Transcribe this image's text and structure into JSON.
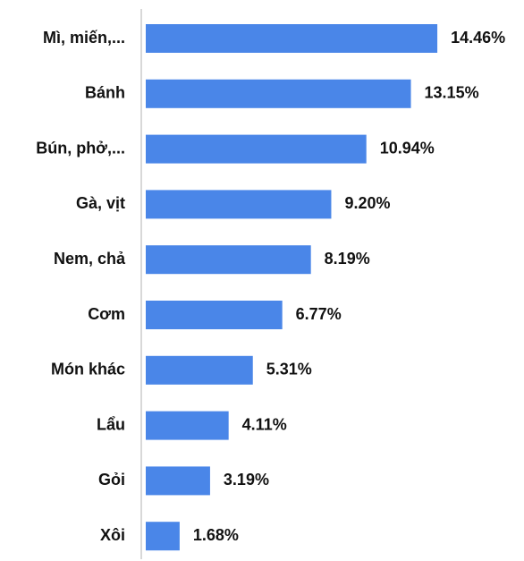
{
  "chart_data": {
    "type": "barh",
    "categories": [
      "Mì, miến,...",
      "Bánh",
      "Bún, phở,...",
      "Gà, vịt",
      "Nem, chả",
      "Cơm",
      "Món khác",
      "Lẩu",
      "Gỏi",
      "Xôi"
    ],
    "values": [
      14.46,
      13.15,
      10.94,
      9.2,
      8.19,
      6.77,
      5.31,
      4.11,
      3.19,
      1.68
    ],
    "value_labels": [
      "14.46%",
      "13.15%",
      "10.94%",
      "9.20%",
      "8.19%",
      "6.77%",
      "5.31%",
      "4.11%",
      "3.19%",
      "1.68%"
    ],
    "color": "#4a86e8"
  }
}
